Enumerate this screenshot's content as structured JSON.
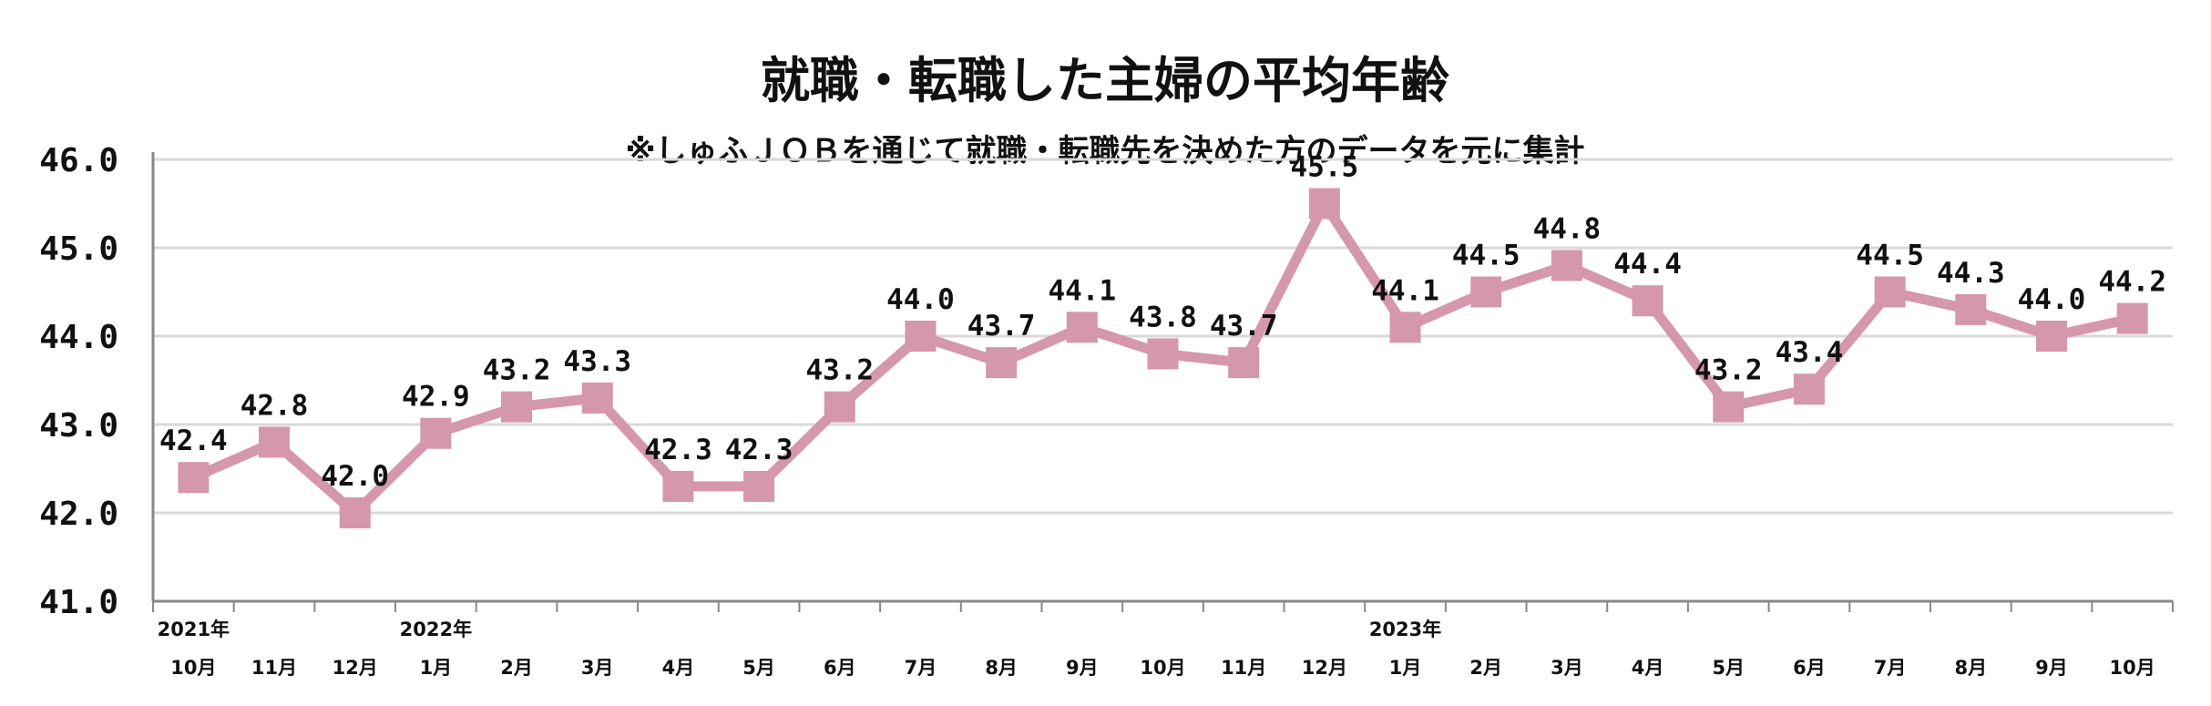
{
  "colors": {
    "series": "#d597ab",
    "grid": "#d9d9d9",
    "axis": "#888888",
    "text": "#111111"
  },
  "chart_data": {
    "type": "line",
    "title": "就職・転職した主婦の平均年齢",
    "subtitle": "※しゅふＪＯＢを通じて就職・転職先を決めた方のデータを元に集計",
    "xlabel": "",
    "ylabel": "",
    "ylim": [
      41.0,
      46.0
    ],
    "yticks": [
      "41.0",
      "42.0",
      "43.0",
      "44.0",
      "45.0",
      "46.0"
    ],
    "grid": true,
    "legend": "none",
    "marker": "square",
    "categories": [
      "10月",
      "11月",
      "12月",
      "1月",
      "2月",
      "3月",
      "4月",
      "5月",
      "6月",
      "7月",
      "8月",
      "9月",
      "10月",
      "11月",
      "12月",
      "1月",
      "2月",
      "3月",
      "4月",
      "5月",
      "6月",
      "7月",
      "8月",
      "9月",
      "10月"
    ],
    "year_labels": [
      {
        "index": 0,
        "label": "2021年"
      },
      {
        "index": 3,
        "label": "2022年"
      },
      {
        "index": 15,
        "label": "2023年"
      }
    ],
    "values": [
      42.4,
      42.8,
      42.0,
      42.9,
      43.2,
      43.3,
      42.3,
      42.3,
      43.2,
      44.0,
      43.7,
      44.1,
      43.8,
      43.7,
      45.5,
      44.1,
      44.5,
      44.8,
      44.4,
      43.2,
      43.4,
      44.5,
      44.3,
      44.0,
      44.2
    ],
    "data_labels": [
      "42.4",
      "42.8",
      "42.0",
      "42.9",
      "43.2",
      "43.3",
      "42.3",
      "42.3",
      "43.2",
      "44.0",
      "43.7",
      "44.1",
      "43.8",
      "43.7",
      "45.5",
      "44.1",
      "44.5",
      "44.8",
      "44.4",
      "43.2",
      "43.4",
      "44.5",
      "44.3",
      "44.0",
      "44.2"
    ]
  }
}
